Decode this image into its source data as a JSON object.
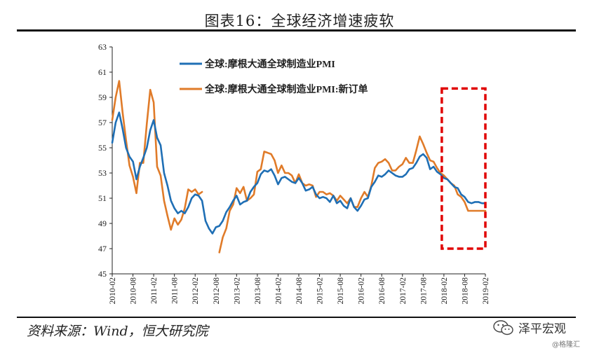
{
  "header": {
    "title": "图表16：全球经济增速疲软"
  },
  "footer": {
    "source": "资料来源：Wind，恒大研究院",
    "watermark_main": "泽平宏观",
    "watermark_sub": "@格隆汇"
  },
  "chart_data": {
    "type": "line",
    "title": "图表16：全球经济增速疲软",
    "ylim": [
      45,
      63
    ],
    "yticks": [
      45,
      47,
      49,
      51,
      53,
      55,
      57,
      59,
      61,
      63
    ],
    "xlim_months": [
      0,
      108
    ],
    "xtick_labels": [
      "2010-02",
      "2010-08",
      "2011-02",
      "2011-08",
      "2012-02",
      "2012-08",
      "2013-02",
      "2013-08",
      "2014-02",
      "2014-08",
      "2015-02",
      "2015-08",
      "2016-02",
      "2016-08",
      "2017-02",
      "2017-08",
      "2018-02",
      "2018-08",
      "2019-02"
    ],
    "legend_position": "top-left",
    "highlight": {
      "label": "red dashed box",
      "from": "2018-02",
      "to": "2019-02",
      "y_range": [
        47.0,
        59.7
      ],
      "color": "#e00000"
    },
    "series": [
      {
        "name": "全球:摩根大通全球制造业PMI",
        "color": "#1f6fb5",
        "x": [
          0,
          1,
          2,
          3,
          4,
          5,
          6,
          7,
          8,
          9,
          10,
          11,
          12,
          13,
          14,
          15,
          16,
          17,
          18,
          19,
          20,
          21,
          22,
          23,
          24,
          25,
          26,
          27,
          28,
          29,
          30,
          31,
          32,
          33,
          34,
          35,
          36,
          37,
          38,
          39,
          40,
          41,
          42,
          43,
          44,
          45,
          46,
          47,
          48,
          49,
          50,
          51,
          52,
          53,
          54,
          55,
          56,
          57,
          58,
          59,
          60,
          61,
          62,
          63,
          64,
          65,
          66,
          67,
          68,
          69,
          70,
          71,
          72,
          73,
          74,
          75,
          76,
          77,
          78,
          79,
          80,
          81,
          82,
          83,
          84,
          85,
          86,
          87,
          88,
          89,
          90,
          91,
          92,
          93,
          94,
          95,
          96,
          97,
          98,
          99,
          100,
          101,
          102,
          103,
          104,
          105,
          106,
          107,
          108
        ],
        "values": [
          55.4,
          57.0,
          57.8,
          56.5,
          55.0,
          54.3,
          53.9,
          52.5,
          53.5,
          54.2,
          55.0,
          56.4,
          57.2,
          55.8,
          55.2,
          53.0,
          52.0,
          50.8,
          50.2,
          49.8,
          50.0,
          49.8,
          50.3,
          51.0,
          51.3,
          51.2,
          50.8,
          49.2,
          48.6,
          48.2,
          48.7,
          48.8,
          49.2,
          49.9,
          50.3,
          50.8,
          51.2,
          50.5,
          50.7,
          50.8,
          51.5,
          51.9,
          52.2,
          52.9,
          53.2,
          53.1,
          53.3,
          52.8,
          52.1,
          52.6,
          52.7,
          52.5,
          52.3,
          52.2,
          52.6,
          52.2,
          51.6,
          51.7,
          51.9,
          51.3,
          51.0,
          51.1,
          51.0,
          50.7,
          51.2,
          50.6,
          50.8,
          50.4,
          50.2,
          51.0,
          50.3,
          50.0,
          50.4,
          50.9,
          51.0,
          51.9,
          52.3,
          52.8,
          52.7,
          52.9,
          53.2,
          53.0,
          52.8,
          52.7,
          52.7,
          52.9,
          53.3,
          53.4,
          53.8,
          54.3,
          54.5,
          54.2,
          53.3,
          53.5,
          53.1,
          52.9,
          52.6,
          52.5,
          52.2,
          51.9,
          51.8,
          51.3,
          51.1,
          50.7,
          50.6,
          50.7,
          50.7,
          50.6,
          50.6
        ]
      },
      {
        "name": "全球:摩根大通全球制造业PMI:新订单",
        "color": "#e07b29",
        "x": [
          0,
          1,
          2,
          3,
          4,
          5,
          6,
          7,
          8,
          9,
          10,
          11,
          12,
          13,
          14,
          15,
          16,
          17,
          18,
          19,
          20,
          21,
          22,
          23,
          24,
          25,
          26,
          31,
          32,
          33,
          34,
          35,
          36,
          37,
          38,
          39,
          40,
          41,
          42,
          43,
          44,
          45,
          46,
          47,
          48,
          49,
          50,
          51,
          52,
          53,
          54,
          55,
          56,
          57,
          58,
          59,
          60,
          61,
          62,
          63,
          64,
          65,
          66,
          67,
          68,
          69,
          70,
          71,
          72,
          73,
          74,
          75,
          76,
          77,
          78,
          79,
          80,
          81,
          82,
          83,
          84,
          85,
          86,
          87,
          88,
          89,
          90,
          91,
          92,
          93,
          94,
          95,
          96,
          97,
          98,
          99,
          100,
          101,
          102,
          103,
          104,
          105,
          106,
          107,
          108
        ],
        "values": [
          57.2,
          59.0,
          60.3,
          57.8,
          55.6,
          53.6,
          52.7,
          51.4,
          53.8,
          53.8,
          56.9,
          59.6,
          58.6,
          53.5,
          52.8,
          50.8,
          49.6,
          48.5,
          49.4,
          48.9,
          49.3,
          50.2,
          51.7,
          51.5,
          51.7,
          51.3,
          51.5,
          46.7,
          47.9,
          48.6,
          50.0,
          50.5,
          51.8,
          51.4,
          51.9,
          50.8,
          51.0,
          51.3,
          53.1,
          53.3,
          54.7,
          54.6,
          54.5,
          54.0,
          53.0,
          53.6,
          53.0,
          53.0,
          52.8,
          52.2,
          52.9,
          52.2,
          52.0,
          52.1,
          52.0,
          51.1,
          51.5,
          51.5,
          51.3,
          51.4,
          51.2,
          50.8,
          51.2,
          50.9,
          50.6,
          51.0,
          50.3,
          50.3,
          51.0,
          51.5,
          51.1,
          52.0,
          53.4,
          53.8,
          53.9,
          54.1,
          53.8,
          53.2,
          53.2,
          53.5,
          53.7,
          54.2,
          53.8,
          53.8,
          54.8,
          55.9,
          55.3,
          54.6,
          54.0,
          53.9,
          53.4,
          53.0,
          52.8,
          52.5,
          52.2,
          52.0,
          51.3,
          51.1,
          50.7,
          50.0,
          50.0,
          50.0,
          50.0,
          50.0,
          50.0
        ]
      }
    ]
  }
}
